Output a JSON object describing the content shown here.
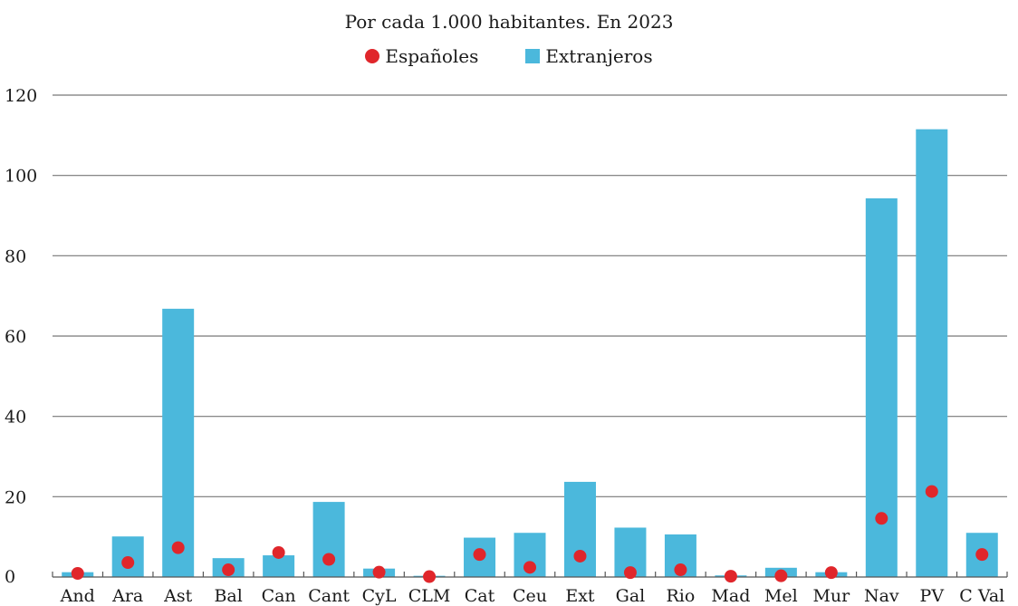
{
  "chart_data": {
    "type": "bar",
    "subtitle": "Por cada 1.000 habitantes. En 2023",
    "categories": [
      "And",
      "Ara",
      "Ast",
      "Bal",
      "Can",
      "Cant",
      "CyL",
      "CLM",
      "Cat",
      "Ceu",
      "Ext",
      "Gal",
      "Rio",
      "Mad",
      "Mel",
      "Mur",
      "Nav",
      "PV",
      "C Val"
    ],
    "series": [
      {
        "name": "Extranjeros",
        "kind": "bar",
        "color": "#4bb8dc",
        "values": [
          1.2,
          10.1,
          66.8,
          4.7,
          5.4,
          18.7,
          2.1,
          0.3,
          9.8,
          11.0,
          23.7,
          12.3,
          10.6,
          0.4,
          2.3,
          1.2,
          94.3,
          111.5,
          11.0
        ]
      },
      {
        "name": "Españoles",
        "kind": "dot",
        "color": "#e0262b",
        "values": [
          0.9,
          3.6,
          7.3,
          1.8,
          6.1,
          4.4,
          1.2,
          0.1,
          5.6,
          2.4,
          5.2,
          1.1,
          1.8,
          0.2,
          0.3,
          1.1,
          14.6,
          21.3,
          5.6
        ]
      }
    ],
    "y_ticks": [
      0,
      20,
      40,
      60,
      80,
      100,
      120
    ],
    "ylim": [
      0,
      120
    ],
    "grid": true,
    "legend_position": "top-center"
  }
}
